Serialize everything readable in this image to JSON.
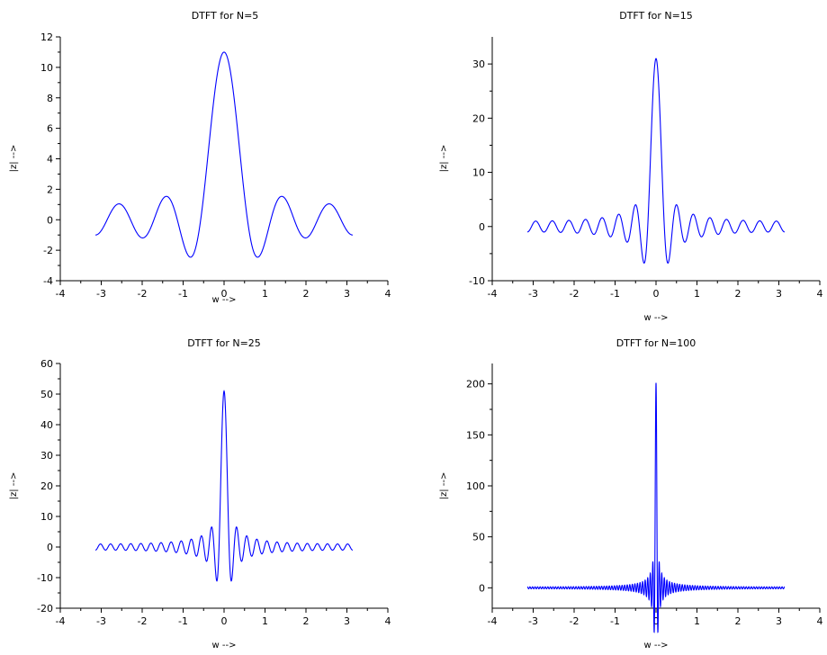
{
  "chart_data": [
    {
      "type": "line",
      "title": "DTFT for N=5",
      "xlabel": "w -->",
      "ylabel": "|z| -->",
      "N": 5,
      "xlim": [
        -4,
        4
      ],
      "ylim": [
        -4,
        12
      ],
      "xticks": [
        -4,
        -3,
        -2,
        -1,
        0,
        1,
        2,
        3,
        4
      ],
      "yticks": [
        -4,
        -2,
        0,
        2,
        4,
        6,
        8,
        10,
        12
      ],
      "x_range": [
        -3.14159,
        3.14159
      ],
      "series": [
        {
          "color": "#0000ff"
        }
      ]
    },
    {
      "type": "line",
      "title": "DTFT for N=15",
      "xlabel": "w -->",
      "ylabel": "|z| -->",
      "N": 15,
      "xlim": [
        -4,
        4
      ],
      "ylim": [
        -10,
        35
      ],
      "xticks": [
        -4,
        -3,
        -2,
        -1,
        0,
        1,
        2,
        3,
        4
      ],
      "yticks": [
        -10,
        0,
        10,
        20,
        30
      ],
      "x_range": [
        -3.14159,
        3.14159
      ],
      "series": [
        {
          "color": "#0000ff"
        }
      ]
    },
    {
      "type": "line",
      "title": "DTFT for N=25",
      "xlabel": "w -->",
      "ylabel": "|z| -->",
      "N": 25,
      "xlim": [
        -4,
        4
      ],
      "ylim": [
        -20,
        60
      ],
      "xticks": [
        -4,
        -3,
        -2,
        -1,
        0,
        1,
        2,
        3,
        4
      ],
      "yticks": [
        -20,
        -10,
        0,
        10,
        20,
        30,
        40,
        50,
        60
      ],
      "x_range": [
        -3.14159,
        3.14159
      ],
      "series": [
        {
          "color": "#0000ff"
        }
      ]
    },
    {
      "type": "line",
      "title": "DTFT for N=100",
      "xlabel": "w -->",
      "ylabel": "|z| -->",
      "N": 100,
      "xlim": [
        -4,
        4
      ],
      "ylim": [
        -20,
        220
      ],
      "xticks": [
        -4,
        -3,
        -2,
        -1,
        0,
        1,
        2,
        3,
        4
      ],
      "yticks": [
        0,
        50,
        100,
        150,
        200
      ],
      "x_range": [
        -3.14159,
        3.14159
      ],
      "series": [
        {
          "color": "#0000ff"
        }
      ]
    }
  ]
}
